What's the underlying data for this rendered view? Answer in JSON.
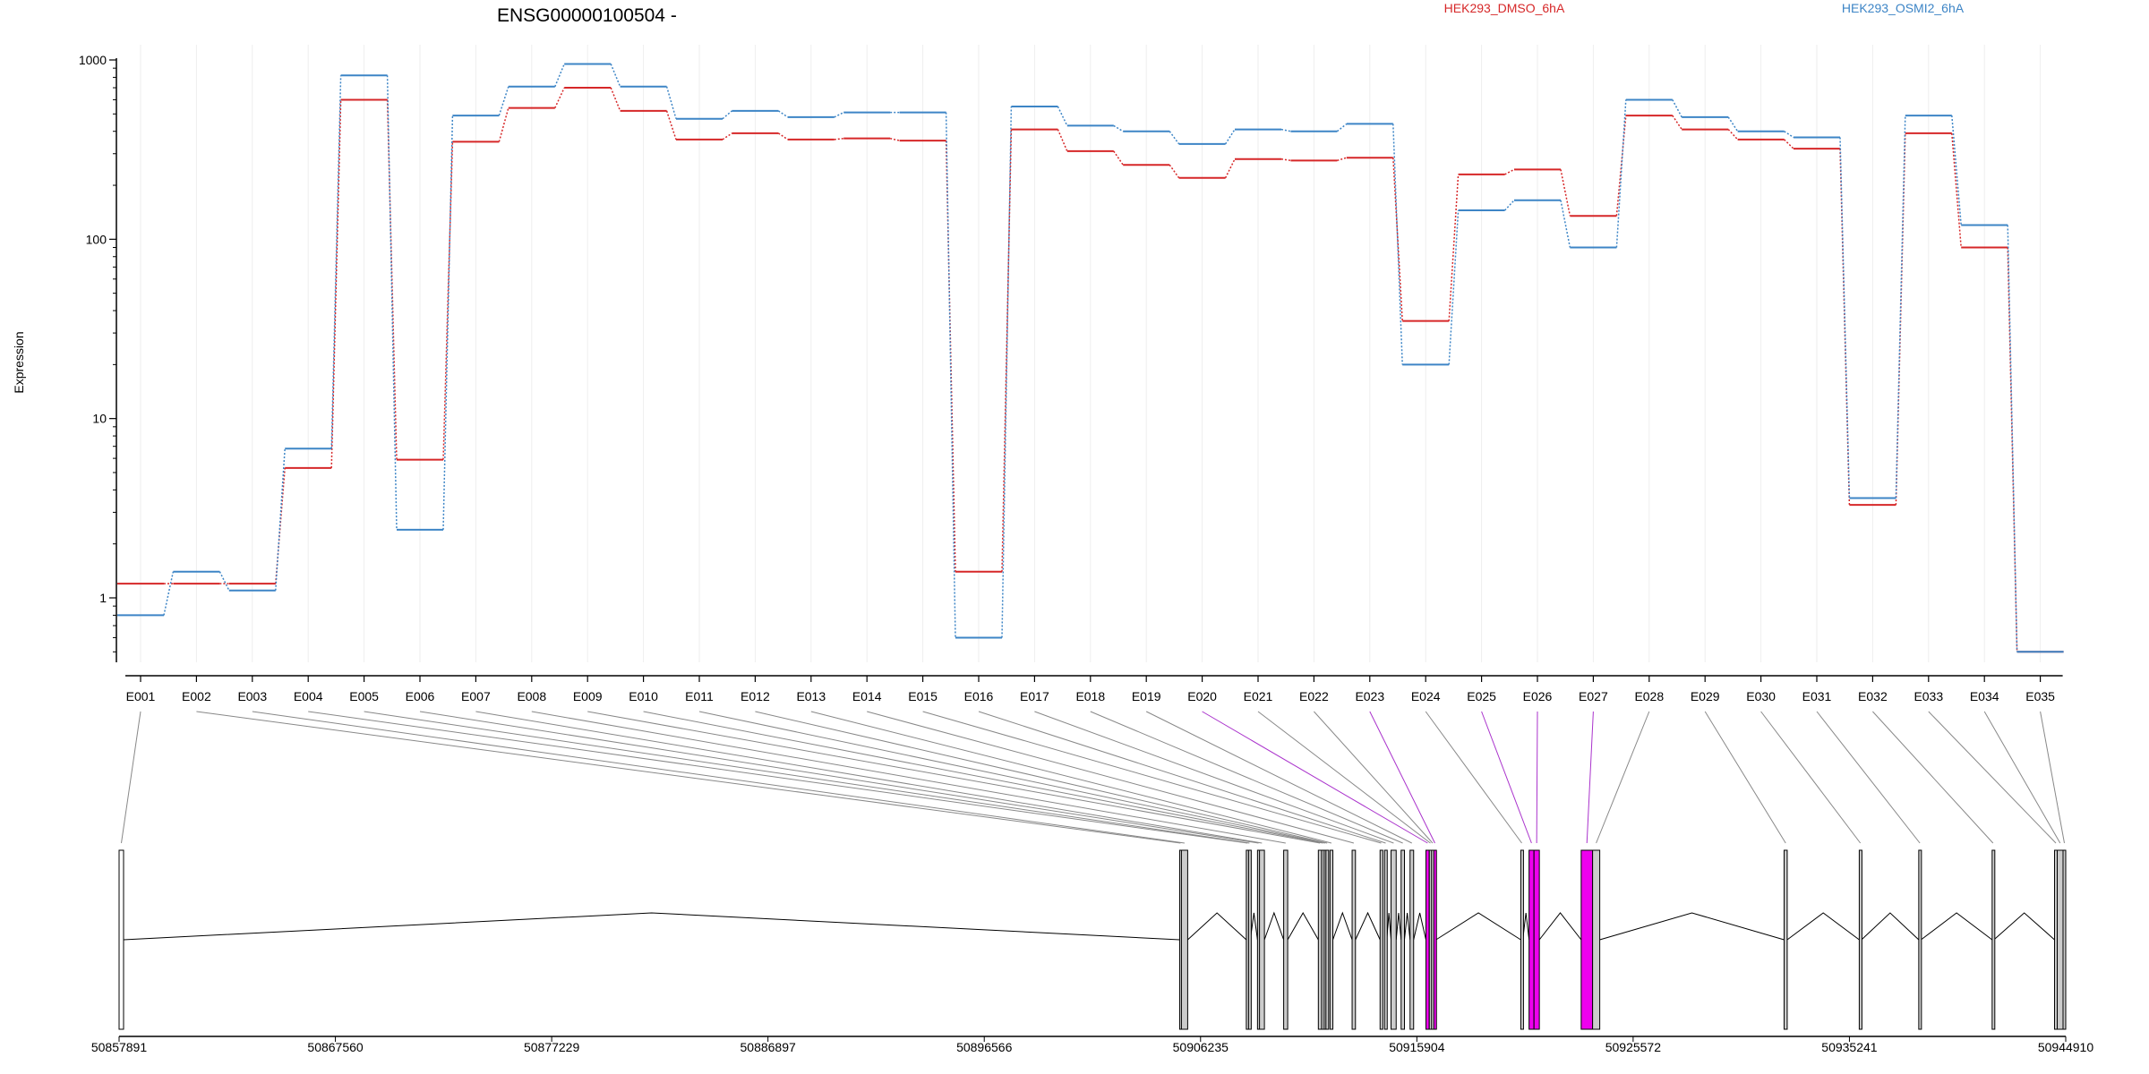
{
  "chart_data": {
    "type": "line",
    "title": "ENSG00000100504 -",
    "ylabel": "Expression",
    "xlabel": "",
    "yscale": "log",
    "ylim": [
      0.5,
      1000
    ],
    "yticks": [
      "1000",
      "100",
      "10",
      "1"
    ],
    "yticks_values": [
      1000,
      100,
      10,
      1
    ],
    "grid": "vertical gridlines",
    "categories": [
      "E001",
      "E002",
      "E003",
      "E004",
      "E005",
      "E006",
      "E007",
      "E008",
      "E009",
      "E010",
      "E011",
      "E012",
      "E013",
      "E014",
      "E015",
      "E016",
      "E017",
      "E018",
      "E019",
      "E020",
      "E021",
      "E022",
      "E023",
      "E024",
      "E025",
      "E026",
      "E027",
      "E028",
      "E029",
      "E030",
      "E031",
      "E032",
      "E033",
      "E034",
      "E035"
    ],
    "series": [
      {
        "name": "HEK293_DMSO_6hA",
        "color": "#d62728",
        "values": [
          1.2,
          1.2,
          1.2,
          5.3,
          600,
          5.9,
          350,
          540,
          700,
          520,
          360,
          390,
          360,
          365,
          355,
          1.4,
          410,
          310,
          260,
          220,
          280,
          275,
          285,
          35,
          230,
          245,
          135,
          490,
          410,
          360,
          320,
          3.3,
          390,
          90,
          0.5
        ]
      },
      {
        "name": "HEK293_OSMI2_6hA",
        "color": "#3d85c6",
        "values": [
          0.8,
          1.4,
          1.1,
          6.8,
          820,
          2.4,
          490,
          710,
          950,
          710,
          470,
          520,
          480,
          510,
          510,
          0.6,
          550,
          430,
          400,
          340,
          410,
          400,
          440,
          20,
          145,
          165,
          90,
          600,
          480,
          400,
          370,
          3.6,
          490,
          120,
          0.5
        ]
      }
    ],
    "mark_style": "step",
    "gene_model": {
      "coordinate_ticks": [
        "50857891",
        "50867560",
        "50877229",
        "50886897",
        "50896566",
        "50906235",
        "50915904",
        "50925572",
        "50935241",
        "50944910"
      ],
      "coordinate_tick_values": [
        50857891,
        50867560,
        50877229,
        50886897,
        50896566,
        50906235,
        50915904,
        50925572,
        50935241,
        50944910
      ],
      "highlight_color": "#ee00ee",
      "highlighted_exons": [
        "E020",
        "E023",
        "E025",
        "E026",
        "E027"
      ],
      "exons": [
        {
          "id": "E001",
          "start": 50857891,
          "end": 50858091
        },
        {
          "id": "E002",
          "start": 50905300,
          "end": 50905380
        },
        {
          "id": "E003",
          "start": 50905380,
          "end": 50905660
        },
        {
          "id": "E004",
          "start": 50908280,
          "end": 50908380
        },
        {
          "id": "E005",
          "start": 50908380,
          "end": 50908460
        },
        {
          "id": "E006",
          "start": 50908780,
          "end": 50908870
        },
        {
          "id": "E007",
          "start": 50908870,
          "end": 50909090
        },
        {
          "id": "E008",
          "start": 50909950,
          "end": 50910130
        },
        {
          "id": "E009",
          "start": 50911500,
          "end": 50911650
        },
        {
          "id": "E010",
          "start": 50911650,
          "end": 50911760
        },
        {
          "id": "E011",
          "start": 50911760,
          "end": 50911840
        },
        {
          "id": "E012",
          "start": 50911840,
          "end": 50911950
        },
        {
          "id": "E013",
          "start": 50912020,
          "end": 50912150
        },
        {
          "id": "E014",
          "start": 50913010,
          "end": 50913160
        },
        {
          "id": "E015",
          "start": 50914260,
          "end": 50914360
        },
        {
          "id": "E016",
          "start": 50914460,
          "end": 50914560
        },
        {
          "id": "E017",
          "start": 50914750,
          "end": 50914980
        },
        {
          "id": "E018",
          "start": 50915200,
          "end": 50915350
        },
        {
          "id": "E019",
          "start": 50915600,
          "end": 50915760
        },
        {
          "id": "E020",
          "start": 50916310,
          "end": 50916460
        },
        {
          "id": "E021",
          "start": 50916460,
          "end": 50916560
        },
        {
          "id": "E022",
          "start": 50916560,
          "end": 50916660
        },
        {
          "id": "E023",
          "start": 50916660,
          "end": 50916760
        },
        {
          "id": "E024",
          "start": 50920550,
          "end": 50920640
        },
        {
          "id": "E025",
          "start": 50920920,
          "end": 50921140
        },
        {
          "id": "E026",
          "start": 50921140,
          "end": 50921380
        },
        {
          "id": "E027",
          "start": 50923250,
          "end": 50923760
        },
        {
          "id": "E028",
          "start": 50923760,
          "end": 50924080
        },
        {
          "id": "E029",
          "start": 50932320,
          "end": 50932460
        },
        {
          "id": "E030",
          "start": 50935680,
          "end": 50935780
        },
        {
          "id": "E031",
          "start": 50938340,
          "end": 50938440
        },
        {
          "id": "E032",
          "start": 50941620,
          "end": 50941700
        },
        {
          "id": "E033",
          "start": 50944410,
          "end": 50944530
        },
        {
          "id": "E034",
          "start": 50944530,
          "end": 50944790
        },
        {
          "id": "E035",
          "start": 50944790,
          "end": 50944910
        }
      ]
    }
  }
}
